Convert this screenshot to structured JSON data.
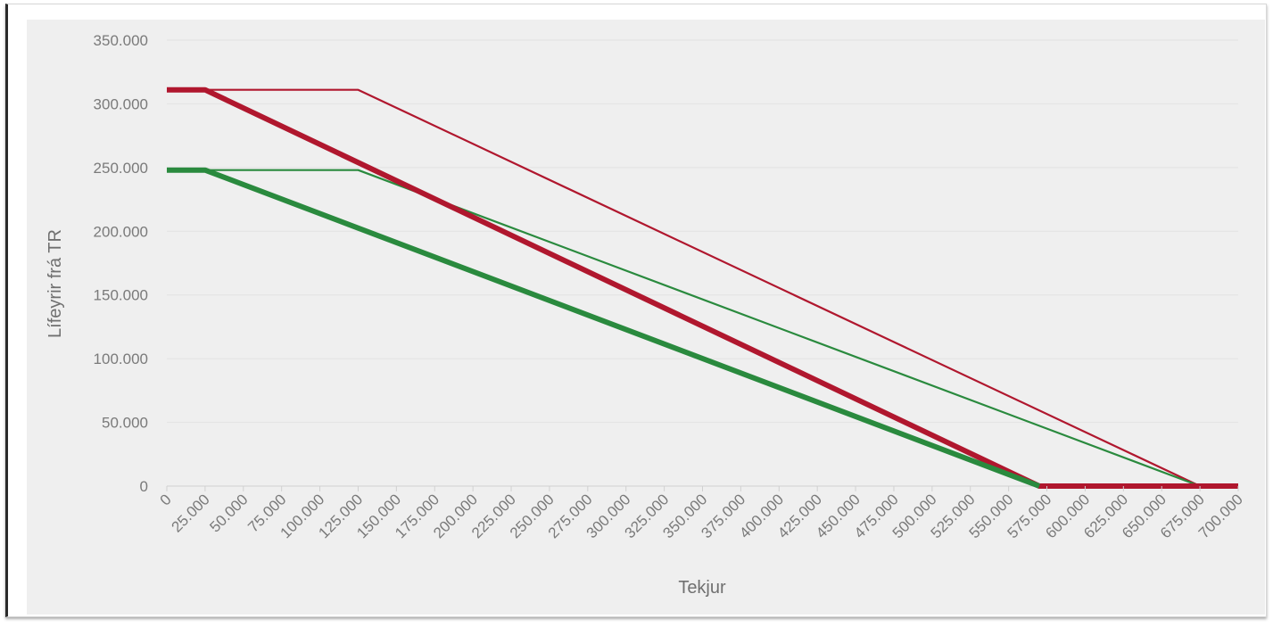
{
  "chart_data": {
    "type": "line",
    "xlabel": "Tekjur",
    "ylabel": "Lífeyrir frá TR",
    "xlim": [
      0,
      700000
    ],
    "ylim": [
      0,
      350000
    ],
    "x_ticks": [
      "0",
      "25.000",
      "50.000",
      "75.000",
      "100.000",
      "125.000",
      "150.000",
      "175.000",
      "200.000",
      "225.000",
      "250.000",
      "275.000",
      "300.000",
      "325.000",
      "350.000",
      "375.000",
      "400.000",
      "425.000",
      "450.000",
      "475.000",
      "500.000",
      "525.000",
      "550.000",
      "575.000",
      "600.000",
      "625.000",
      "650.000",
      "675.000",
      "700.000"
    ],
    "x_tick_values": [
      0,
      25000,
      50000,
      75000,
      100000,
      125000,
      150000,
      175000,
      200000,
      225000,
      250000,
      275000,
      300000,
      325000,
      350000,
      375000,
      400000,
      425000,
      450000,
      475000,
      500000,
      525000,
      550000,
      575000,
      600000,
      625000,
      650000,
      675000,
      700000
    ],
    "y_ticks": [
      "0",
      "50.000",
      "100.000",
      "150.000",
      "200.000",
      "250.000",
      "300.000",
      "350.000"
    ],
    "y_tick_values": [
      0,
      50000,
      100000,
      150000,
      200000,
      250000,
      300000,
      350000
    ],
    "grid": "horizontal",
    "series": [
      {
        "color": "#b0172e",
        "style": "thick",
        "x": [
          0,
          25000,
          570000,
          700000
        ],
        "y": [
          311000,
          311000,
          0,
          0
        ]
      },
      {
        "color": "#b0172e",
        "style": "thin",
        "x": [
          0,
          125000,
          675000,
          700000
        ],
        "y": [
          311000,
          311000,
          0,
          0
        ]
      },
      {
        "color": "#2a8a3e",
        "style": "thick",
        "x": [
          0,
          25000,
          570000
        ],
        "y": [
          248000,
          248000,
          0
        ]
      },
      {
        "color": "#2a8a3e",
        "style": "thin",
        "x": [
          0,
          125000,
          675000
        ],
        "y": [
          248000,
          248000,
          0
        ]
      }
    ]
  }
}
